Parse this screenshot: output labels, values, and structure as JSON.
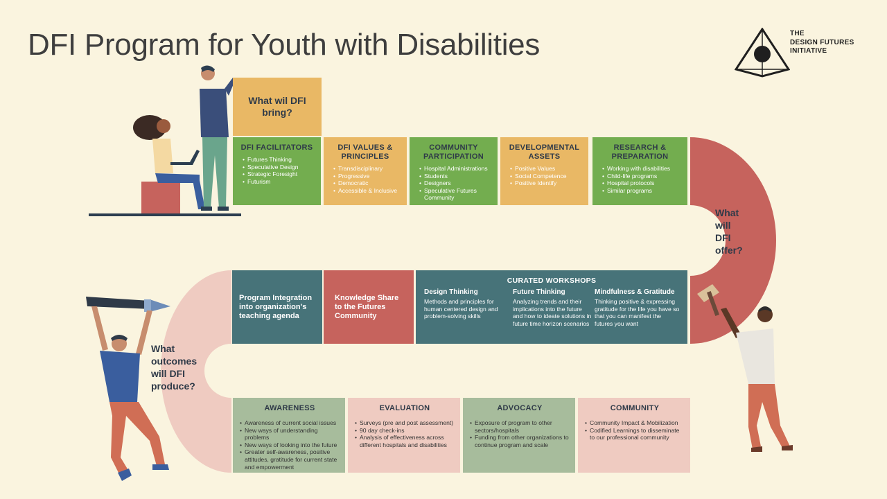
{
  "title": "DFI Program for Youth with Disabilities",
  "logo": {
    "line1": "THE",
    "line2": "DESIGN FUTURES",
    "line3": "INITIATIVE"
  },
  "bring_label": "What wil DFI bring?",
  "offer_label": "What will DFI offer?",
  "produce_label": "What outcomes will DFI produce?",
  "row1": [
    {
      "title": "DFI FACILITATORS",
      "items": [
        "Futures Thinking",
        "Speculative Design",
        "Strategic Foresight",
        "Futurism"
      ]
    },
    {
      "title": "DFI VALUES & PRINCIPLES",
      "items": [
        "Transdisciplinary",
        "Progressive",
        "Democratic",
        "Accessible & Inclusive"
      ]
    },
    {
      "title": "COMMUNITY PARTICIPATION",
      "items": [
        "Hospital Administrations",
        "Students",
        "Designers",
        "Speculative Futures Community"
      ]
    },
    {
      "title": "DEVELOPMENTAL ASSETS",
      "items": [
        "Positive Values",
        "Social Competence",
        "Positive Identify"
      ]
    },
    {
      "title": "RESEARCH & PREPARATION",
      "items": [
        "Working with disabilities",
        "Child-life programs",
        "Hospital protocols",
        "Similar programs"
      ]
    }
  ],
  "row2": {
    "integration": "Program Integration into organization's teaching agenda",
    "knowledge": "Knowledge Share to the Futures Community",
    "workshops": {
      "title": "CURATED WORKSHOPS",
      "cols": [
        {
          "title": "Design Thinking",
          "text": "Methods and principles for human centered design and problem-solving skills"
        },
        {
          "title": "Future Thinking",
          "text": "Analyzing trends  and their implications into the future and how to ideate solutions in future time horizon scenarios"
        },
        {
          "title": "Mindfulness & Gratitude",
          "text": "Thinking positive & expressing gratitude for the life you have so that you can manifest the futures you want"
        }
      ]
    }
  },
  "row3": [
    {
      "title": "AWARENESS",
      "items": [
        "Awareness of current social issues",
        "New ways of understanding problems",
        "New ways of looking into the future",
        "Greater self-awareness, positive attitudes, gratitude for current state and empowerment"
      ]
    },
    {
      "title": "EVALUATION",
      "items": [
        "Surveys (pre and post assessment)",
        "90 day check-ins",
        "Analysis of effectiveness across different hospitals and disabilities"
      ]
    },
    {
      "title": "ADVOCACY",
      "items": [
        "Exposure of program  to other sectors/hospitals",
        "Funding from other organizations to continue program and scale"
      ]
    },
    {
      "title": "COMMUNITY",
      "items": [
        "Community Impact & Mobilization",
        "Codified Learnings to disseminate to our professional community"
      ]
    }
  ],
  "colors": {
    "green": "#73ad4f",
    "tan": "#e9b865",
    "red": "#c6635d",
    "teal": "#477379",
    "sage": "#a7bc9c",
    "pink": "#efcbc1",
    "background": "#faf4df"
  }
}
